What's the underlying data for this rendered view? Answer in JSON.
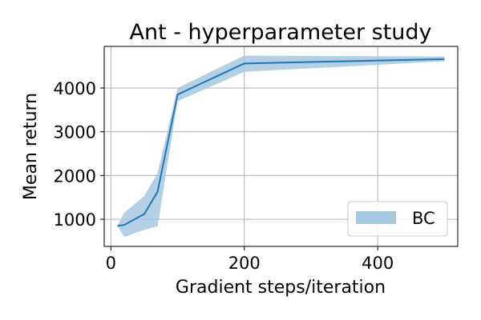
{
  "chart_data": {
    "type": "line",
    "title": "Ant - hyperparameter study",
    "xlabel": "Gradient steps/iteration",
    "ylabel": "Mean return",
    "xlim": [
      -10,
      520
    ],
    "ylim": [
      380,
      4950
    ],
    "xticks": [
      0,
      200,
      400
    ],
    "yticks": [
      1000,
      2000,
      3000,
      4000
    ],
    "grid": true,
    "legend_position": "lower-right",
    "series": [
      {
        "name": "BC",
        "color": "#1f77b4",
        "band_color": "#a6c8e1",
        "x": [
          10,
          20,
          50,
          70,
          100,
          200,
          500
        ],
        "mean": [
          850,
          870,
          1120,
          1630,
          3850,
          4560,
          4660
        ],
        "lower": [
          840,
          600,
          760,
          840,
          3700,
          4370,
          4610
        ],
        "upper": [
          860,
          1150,
          1530,
          2060,
          4000,
          4740,
          4720
        ]
      }
    ]
  }
}
